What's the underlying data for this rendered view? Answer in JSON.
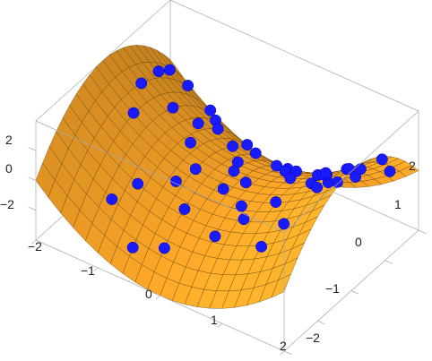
{
  "chart_data": {
    "type": "surface3d",
    "title": "",
    "xlabel": "",
    "ylabel": "",
    "zlabel": "",
    "surface": "z = x^2 - y^2 (saddle)",
    "xlim": [
      -2,
      2
    ],
    "ylim": [
      -2,
      2
    ],
    "zlim": [
      -4,
      4
    ],
    "x_ticks": [
      "−2",
      "−1",
      "0",
      "1",
      "2"
    ],
    "y_ticks": [
      "−2",
      "−1",
      "0",
      "1",
      "2"
    ],
    "z_ticks": [
      "−2",
      "0",
      "2"
    ],
    "surface_color": "#f5a623",
    "point_color": "#1a1aff",
    "point_series": {
      "x": [
        -1.9,
        -1.7,
        -1.5,
        -1.4,
        -1.3,
        -1.2,
        -1.0,
        -0.9,
        -0.8,
        -0.7,
        -0.6,
        -0.5,
        -0.4,
        -0.3,
        -0.2,
        -0.1,
        0.0,
        0.1,
        0.2,
        0.3,
        0.4,
        0.5,
        0.6,
        0.7,
        0.8,
        0.9,
        1.0,
        1.1,
        1.2,
        1.3,
        1.4,
        1.5,
        1.6,
        1.7,
        1.8,
        -1.1,
        -0.2,
        0.3,
        0.8,
        1.2,
        -0.6,
        0.5,
        1.5,
        -1.6,
        0.0,
        1.0,
        -0.9,
        0.7,
        1.9,
        -0.4
      ],
      "y": [
        1.8,
        1.1,
        1.6,
        -0.2,
        1.9,
        0.6,
        1.5,
        -1.0,
        1.2,
        0.2,
        1.7,
        -0.6,
        0.9,
        1.4,
        -1.5,
        0.5,
        1.8,
        -0.3,
        1.1,
        0.0,
        -1.1,
        0.8,
        1.9,
        -0.8,
        0.4,
        1.3,
        -0.4,
        0.9,
        1.6,
        0.1,
        -0.9,
        1.2,
        0.6,
        1.7,
        0.3,
        -1.4,
        -0.9,
        1.5,
        1.8,
        -1.2,
        -1.7,
        -0.5,
        -0.1,
        0.4,
        0.2,
        1.0,
        0.8,
        1.4,
        1.1,
        -0.2
      ],
      "z": [
        -0.1,
        1.6,
        0.0,
        2.0,
        -1.9,
        1.1,
        -1.2,
        -0.2,
        -0.8,
        0.5,
        -2.5,
        -0.1,
        -0.6,
        -1.9,
        -2.2,
        -0.3,
        -3.2,
        -0.1,
        -1.2,
        0.1,
        -1.1,
        -0.4,
        -3.2,
        0.0,
        0.5,
        -0.9,
        0.9,
        0.4,
        -1.1,
        1.7,
        1.2,
        0.8,
        2.2,
        0.0,
        3.2,
        -0.8,
        -0.8,
        -2.2,
        -2.6,
        -0.1,
        -2.5,
        -0.1,
        2.2,
        2.4,
        -0.1,
        -0.1,
        0.2,
        -1.5,
        2.4,
        0.1
      ]
    }
  }
}
